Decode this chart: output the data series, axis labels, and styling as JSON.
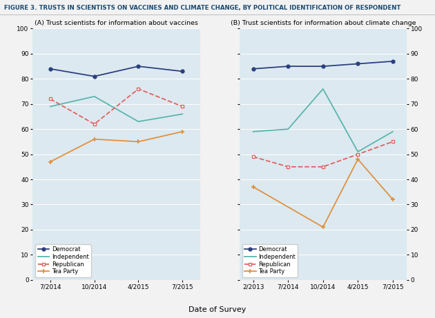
{
  "title": "FIGURE 3. TRUSTS IN SCIENTISTS ON VACCINES AND CLIMATE CHANGE, BY POLITICAL IDENTIFICATION OF RESPONDENT",
  "title_fontsize": 6.2,
  "subtitle_A": "(A) Trust scientists for information about vaccines",
  "subtitle_B": "(B) Trust scientists for information about climate change",
  "xlabel": "Date of Survey",
  "panel_A": {
    "x_labels": [
      "7/2014",
      "10/2014",
      "4/2015",
      "7/2015"
    ],
    "x_positions": [
      0,
      1,
      2,
      3
    ],
    "democrat": [
      84,
      81,
      85,
      83
    ],
    "independent": [
      69,
      73,
      63,
      66
    ],
    "republican": [
      72,
      62,
      76,
      69
    ],
    "tea_party": [
      47,
      56,
      55,
      59
    ]
  },
  "panel_B": {
    "x_labels": [
      "2/2013",
      "7/2014",
      "10/2014",
      "4/2015",
      "7/2015"
    ],
    "x_positions": [
      0,
      1,
      2,
      3,
      4
    ],
    "democrat": [
      84,
      85,
      85,
      86,
      87
    ],
    "independent": [
      59,
      60,
      76,
      51,
      59
    ],
    "republican": [
      49,
      45,
      45,
      50,
      55
    ],
    "tea_party": [
      37,
      null,
      21,
      48,
      32
    ]
  },
  "colors": {
    "democrat": "#2b3f7e",
    "independent": "#5ab5ad",
    "republican": "#e06060",
    "tea_party": "#e09040"
  },
  "panel_bg": "#dce9f0",
  "fig_bg": "#f2f2f2",
  "ylim": [
    0,
    100
  ],
  "yticks": [
    0,
    10,
    20,
    30,
    40,
    50,
    60,
    70,
    80,
    90,
    100
  ]
}
